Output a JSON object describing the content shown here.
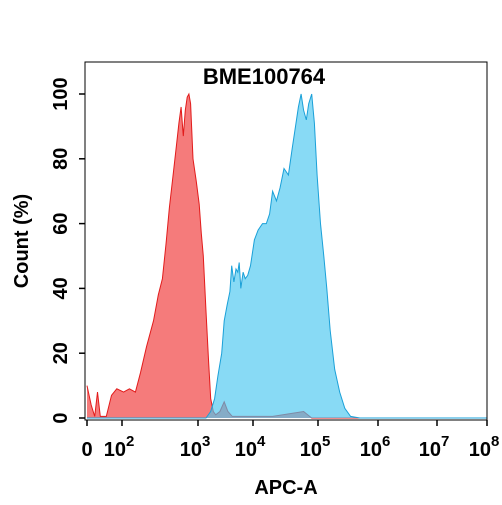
{
  "chart_data": {
    "type": "area",
    "title": "BME100764",
    "xlabel": "APC-A",
    "ylabel": "Count  (%)",
    "x_scale": "biexponential",
    "xlim": [
      0,
      100000000
    ],
    "ylim": [
      0,
      110
    ],
    "x_ticks": [
      {
        "value": 0,
        "base": "0",
        "exp": ""
      },
      {
        "value": 100,
        "base": "10",
        "exp": "2"
      },
      {
        "value": 1000,
        "base": "10",
        "exp": "3"
      },
      {
        "value": 10000,
        "base": "10",
        "exp": "4"
      },
      {
        "value": 100000,
        "base": "10",
        "exp": "5"
      },
      {
        "value": 1000000,
        "base": "10",
        "exp": "6"
      },
      {
        "value": 10000000,
        "base": "10",
        "exp": "7"
      },
      {
        "value": 100000000,
        "base": "10",
        "exp": "8"
      }
    ],
    "y_ticks": [
      0,
      20,
      40,
      60,
      80,
      100
    ],
    "grid": false,
    "series": [
      {
        "color": "#f25a5a",
        "stroke": "#e21b1b",
        "fill_opacity": 0.8,
        "points": [
          [
            0,
            10
          ],
          [
            12,
            4
          ],
          [
            22,
            0.5
          ],
          [
            30,
            8
          ],
          [
            38,
            0.5
          ],
          [
            55,
            0.5
          ],
          [
            70,
            7
          ],
          [
            85,
            9
          ],
          [
            105,
            8
          ],
          [
            125,
            9
          ],
          [
            150,
            8
          ],
          [
            175,
            14
          ],
          [
            210,
            22
          ],
          [
            260,
            30
          ],
          [
            300,
            38
          ],
          [
            340,
            43
          ],
          [
            380,
            54
          ],
          [
            420,
            65
          ],
          [
            470,
            75
          ],
          [
            520,
            84
          ],
          [
            560,
            91
          ],
          [
            600,
            96
          ],
          [
            640,
            87
          ],
          [
            680,
            95
          ],
          [
            720,
            99
          ],
          [
            760,
            100
          ],
          [
            800,
            97
          ],
          [
            860,
            80
          ],
          [
            950,
            73
          ],
          [
            1050,
            66
          ],
          [
            1150,
            57
          ],
          [
            1250,
            50
          ],
          [
            1400,
            33
          ],
          [
            1550,
            18
          ],
          [
            1700,
            6
          ],
          [
            1900,
            2
          ],
          [
            2100,
            1
          ],
          [
            2500,
            2
          ],
          [
            3000,
            5
          ],
          [
            3500,
            2
          ],
          [
            4200,
            0.5
          ],
          [
            20000,
            0.5
          ],
          [
            60000,
            2
          ],
          [
            80000,
            0
          ],
          [
            100000000,
            0
          ]
        ]
      },
      {
        "color": "#48c6ef",
        "stroke": "#1aa0d8",
        "fill_opacity": 0.65,
        "points": [
          [
            0,
            0
          ],
          [
            1400,
            0
          ],
          [
            1700,
            2
          ],
          [
            2000,
            6
          ],
          [
            2300,
            13
          ],
          [
            2700,
            20
          ],
          [
            3000,
            30
          ],
          [
            3400,
            35
          ],
          [
            3800,
            39
          ],
          [
            4100,
            47
          ],
          [
            4500,
            42
          ],
          [
            4900,
            46
          ],
          [
            5300,
            45
          ],
          [
            5600,
            48
          ],
          [
            6000,
            40
          ],
          [
            6600,
            45
          ],
          [
            7200,
            43
          ],
          [
            8000,
            44
          ],
          [
            9000,
            47
          ],
          [
            10500,
            55
          ],
          [
            12000,
            58
          ],
          [
            14000,
            60
          ],
          [
            16000,
            60
          ],
          [
            18000,
            63
          ],
          [
            20000,
            70
          ],
          [
            23000,
            67
          ],
          [
            26000,
            71
          ],
          [
            30000,
            77
          ],
          [
            35000,
            75
          ],
          [
            40000,
            83
          ],
          [
            45000,
            90
          ],
          [
            50000,
            96
          ],
          [
            55000,
            100
          ],
          [
            60000,
            95
          ],
          [
            66000,
            92
          ],
          [
            72000,
            97
          ],
          [
            80000,
            100
          ],
          [
            88000,
            91
          ],
          [
            97000,
            75
          ],
          [
            110000,
            60
          ],
          [
            125000,
            50
          ],
          [
            140000,
            40
          ],
          [
            160000,
            27
          ],
          [
            190000,
            15
          ],
          [
            230000,
            8
          ],
          [
            280000,
            3
          ],
          [
            350000,
            0.5
          ],
          [
            500000,
            0
          ],
          [
            100000000,
            0
          ]
        ]
      }
    ]
  }
}
